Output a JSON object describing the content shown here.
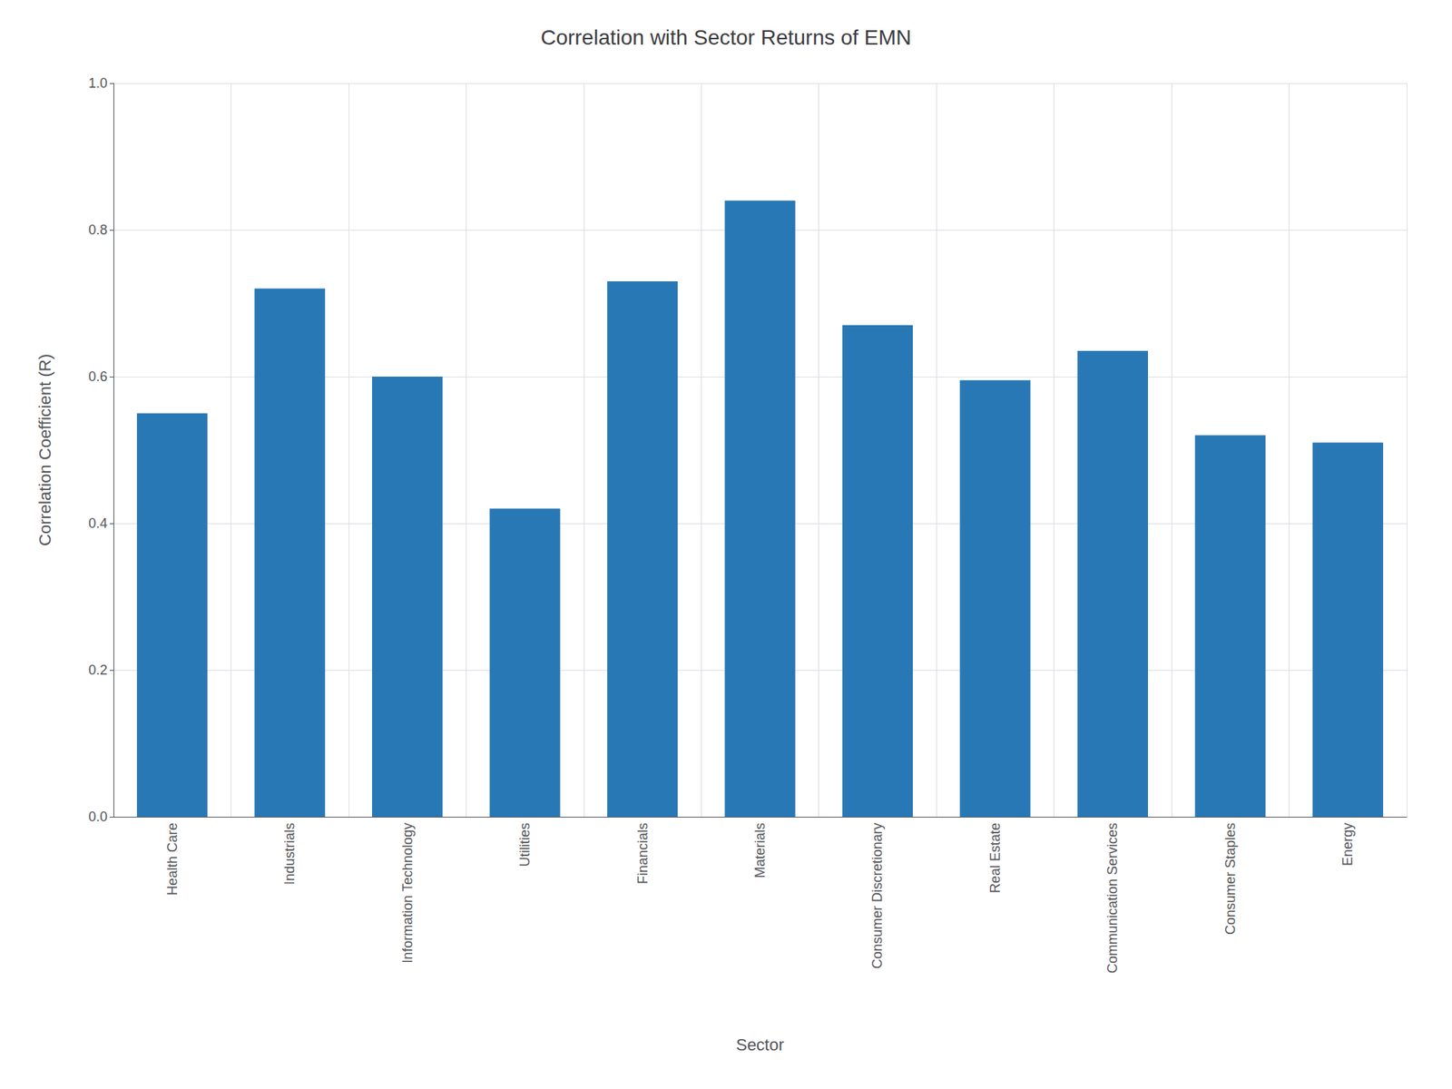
{
  "chart_data": {
    "type": "bar",
    "title": "Correlation with Sector Returns of EMN",
    "xlabel": "Sector",
    "ylabel": "Correlation Coefficient (R)",
    "categories": [
      "Health Care",
      "Industrials",
      "Information Technology",
      "Utilities",
      "Financials",
      "Materials",
      "Consumer Discretionary",
      "Real Estate",
      "Communication Services",
      "Consumer Staples",
      "Energy"
    ],
    "values": [
      0.55,
      0.72,
      0.6,
      0.42,
      0.73,
      0.84,
      0.67,
      0.595,
      0.635,
      0.52,
      0.51
    ],
    "color": "#2878b5",
    "ylim": [
      0.0,
      1.0
    ],
    "yticks": [
      {
        "value": 0.0,
        "label": "0.0"
      },
      0.2,
      0.4,
      0.6,
      0.8,
      {
        "value": 1.0,
        "label": "1.0"
      }
    ],
    "grid": true
  }
}
